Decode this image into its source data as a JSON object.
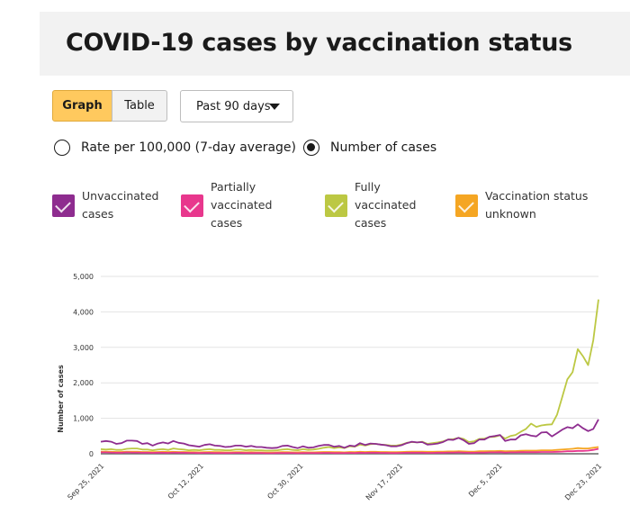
{
  "header": {
    "title": "COVID-19 cases by vaccination status"
  },
  "view_toggle": {
    "graph_label": "Graph",
    "table_label": "Table",
    "selected": "Graph"
  },
  "range_select": {
    "value": "Past 90 days"
  },
  "measure_options": {
    "rate_label": "Rate per 100,000 (7-day average)",
    "cases_label": "Number of cases",
    "selected": "cases"
  },
  "legend": [
    {
      "label": "Unvaccinated cases",
      "color": "#8e2c8f",
      "checked": true
    },
    {
      "label": "Partially vaccinated cases",
      "color": "#e8378d",
      "checked": true
    },
    {
      "label": "Fully vaccinated cases",
      "color": "#bcc843",
      "checked": true
    },
    {
      "label": "Vaccination status unknown",
      "color": "#f5a623",
      "checked": true
    }
  ],
  "chart_data": {
    "type": "line",
    "ylabel": "Number of cases",
    "ylim": [
      0,
      5000
    ],
    "y_ticks": [
      "0",
      "1,000",
      "2,000",
      "3,000",
      "4,000",
      "5,000"
    ],
    "x_tick_labels": [
      "Sep 25, 2021",
      "Oct 12, 2021",
      "Oct 30, 2021",
      "Nov 17, 2021",
      "Dec 5, 2021",
      "Dec 23, 2021"
    ],
    "x_start": "Sep 25, 2021",
    "x_end": "Dec 23, 2021",
    "grid": true,
    "series": [
      {
        "name": "Unvaccinated cases",
        "color": "#8e2c8f",
        "values": [
          340,
          360,
          340,
          280,
          300,
          370,
          370,
          360,
          280,
          300,
          230,
          290,
          320,
          290,
          360,
          310,
          290,
          240,
          220,
          200,
          250,
          270,
          230,
          220,
          190,
          200,
          230,
          230,
          200,
          220,
          190,
          190,
          170,
          160,
          170,
          220,
          230,
          190,
          160,
          210,
          170,
          180,
          220,
          250,
          250,
          200,
          220,
          170,
          230,
          210,
          300,
          250,
          290,
          280,
          260,
          240,
          210,
          210,
          240,
          300,
          340,
          320,
          330,
          260,
          270,
          290,
          330,
          400,
          390,
          450,
          380,
          280,
          300,
          400,
          400,
          480,
          500,
          530,
          360,
          400,
          400,
          520,
          550,
          510,
          490,
          600,
          610,
          490,
          580,
          680,
          750,
          720,
          830,
          720,
          640,
          700,
          970
        ]
      },
      {
        "name": "Partially vaccinated cases",
        "color": "#e8378d",
        "values": [
          40,
          40,
          35,
          30,
          30,
          40,
          35,
          35,
          30,
          30,
          25,
          30,
          30,
          25,
          35,
          30,
          30,
          25,
          25,
          20,
          25,
          25,
          20,
          20,
          20,
          20,
          25,
          25,
          20,
          20,
          20,
          20,
          15,
          15,
          20,
          20,
          20,
          20,
          15,
          20,
          20,
          20,
          20,
          25,
          25,
          20,
          20,
          20,
          25,
          20,
          30,
          25,
          30,
          30,
          25,
          25,
          20,
          20,
          25,
          30,
          30,
          30,
          30,
          25,
          25,
          30,
          30,
          35,
          35,
          40,
          35,
          30,
          30,
          35,
          35,
          40,
          40,
          45,
          35,
          40,
          40,
          45,
          45,
          45,
          45,
          50,
          50,
          50,
          55,
          60,
          70,
          70,
          80,
          80,
          90,
          110,
          140
        ]
      },
      {
        "name": "Fully vaccinated cases",
        "color": "#bcc843",
        "values": [
          130,
          120,
          130,
          110,
          110,
          140,
          150,
          150,
          120,
          120,
          100,
          120,
          130,
          110,
          150,
          130,
          120,
          100,
          110,
          100,
          120,
          130,
          110,
          110,
          100,
          100,
          120,
          120,
          100,
          110,
          100,
          100,
          90,
          90,
          100,
          120,
          130,
          110,
          100,
          130,
          110,
          120,
          140,
          170,
          190,
          160,
          180,
          160,
          210,
          200,
          260,
          230,
          270,
          280,
          260,
          250,
          230,
          230,
          260,
          310,
          330,
          320,
          340,
          280,
          300,
          320,
          350,
          400,
          410,
          450,
          420,
          330,
          350,
          420,
          430,
          470,
          480,
          520,
          430,
          500,
          530,
          620,
          700,
          850,
          760,
          800,
          820,
          830,
          1100,
          1600,
          2100,
          2300,
          2950,
          2750,
          2500,
          3200,
          4350
        ]
      },
      {
        "name": "Vaccination status unknown",
        "color": "#f5a623",
        "values": [
          60,
          60,
          55,
          50,
          50,
          60,
          60,
          60,
          50,
          50,
          45,
          50,
          55,
          50,
          55,
          50,
          50,
          45,
          45,
          40,
          45,
          50,
          45,
          45,
          40,
          40,
          45,
          45,
          40,
          45,
          40,
          40,
          35,
          35,
          40,
          45,
          45,
          40,
          40,
          45,
          40,
          40,
          45,
          50,
          50,
          45,
          45,
          40,
          50,
          45,
          55,
          50,
          55,
          55,
          50,
          50,
          45,
          45,
          50,
          55,
          60,
          60,
          60,
          55,
          55,
          60,
          60,
          65,
          65,
          70,
          65,
          60,
          60,
          70,
          70,
          75,
          75,
          80,
          70,
          75,
          75,
          85,
          90,
          90,
          90,
          100,
          100,
          100,
          110,
          120,
          130,
          140,
          160,
          150,
          150,
          170,
          190
        ]
      }
    ]
  }
}
